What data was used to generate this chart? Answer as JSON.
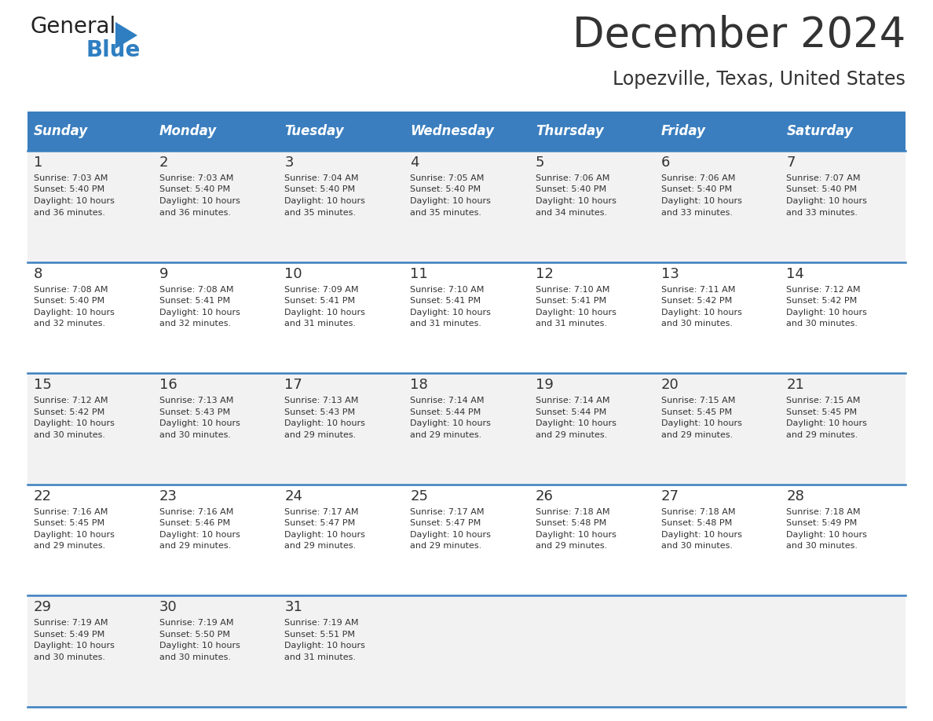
{
  "title": "December 2024",
  "subtitle": "Lopezville, Texas, United States",
  "header_bg": "#3A7EBF",
  "header_text_color": "#FFFFFF",
  "days_of_week": [
    "Sunday",
    "Monday",
    "Tuesday",
    "Wednesday",
    "Thursday",
    "Friday",
    "Saturday"
  ],
  "row_bg_even": "#F2F2F2",
  "row_bg_odd": "#FFFFFF",
  "divider_color": "#3A7EBF",
  "text_color": "#333333",
  "calendar": [
    [
      {
        "day": 1,
        "sunrise": "7:03 AM",
        "sunset": "5:40 PM",
        "daylight": "10 hours and 36 minutes."
      },
      {
        "day": 2,
        "sunrise": "7:03 AM",
        "sunset": "5:40 PM",
        "daylight": "10 hours and 36 minutes."
      },
      {
        "day": 3,
        "sunrise": "7:04 AM",
        "sunset": "5:40 PM",
        "daylight": "10 hours and 35 minutes."
      },
      {
        "day": 4,
        "sunrise": "7:05 AM",
        "sunset": "5:40 PM",
        "daylight": "10 hours and 35 minutes."
      },
      {
        "day": 5,
        "sunrise": "7:06 AM",
        "sunset": "5:40 PM",
        "daylight": "10 hours and 34 minutes."
      },
      {
        "day": 6,
        "sunrise": "7:06 AM",
        "sunset": "5:40 PM",
        "daylight": "10 hours and 33 minutes."
      },
      {
        "day": 7,
        "sunrise": "7:07 AM",
        "sunset": "5:40 PM",
        "daylight": "10 hours and 33 minutes."
      }
    ],
    [
      {
        "day": 8,
        "sunrise": "7:08 AM",
        "sunset": "5:40 PM",
        "daylight": "10 hours and 32 minutes."
      },
      {
        "day": 9,
        "sunrise": "7:08 AM",
        "sunset": "5:41 PM",
        "daylight": "10 hours and 32 minutes."
      },
      {
        "day": 10,
        "sunrise": "7:09 AM",
        "sunset": "5:41 PM",
        "daylight": "10 hours and 31 minutes."
      },
      {
        "day": 11,
        "sunrise": "7:10 AM",
        "sunset": "5:41 PM",
        "daylight": "10 hours and 31 minutes."
      },
      {
        "day": 12,
        "sunrise": "7:10 AM",
        "sunset": "5:41 PM",
        "daylight": "10 hours and 31 minutes."
      },
      {
        "day": 13,
        "sunrise": "7:11 AM",
        "sunset": "5:42 PM",
        "daylight": "10 hours and 30 minutes."
      },
      {
        "day": 14,
        "sunrise": "7:12 AM",
        "sunset": "5:42 PM",
        "daylight": "10 hours and 30 minutes."
      }
    ],
    [
      {
        "day": 15,
        "sunrise": "7:12 AM",
        "sunset": "5:42 PM",
        "daylight": "10 hours and 30 minutes."
      },
      {
        "day": 16,
        "sunrise": "7:13 AM",
        "sunset": "5:43 PM",
        "daylight": "10 hours and 30 minutes."
      },
      {
        "day": 17,
        "sunrise": "7:13 AM",
        "sunset": "5:43 PM",
        "daylight": "10 hours and 29 minutes."
      },
      {
        "day": 18,
        "sunrise": "7:14 AM",
        "sunset": "5:44 PM",
        "daylight": "10 hours and 29 minutes."
      },
      {
        "day": 19,
        "sunrise": "7:14 AM",
        "sunset": "5:44 PM",
        "daylight": "10 hours and 29 minutes."
      },
      {
        "day": 20,
        "sunrise": "7:15 AM",
        "sunset": "5:45 PM",
        "daylight": "10 hours and 29 minutes."
      },
      {
        "day": 21,
        "sunrise": "7:15 AM",
        "sunset": "5:45 PM",
        "daylight": "10 hours and 29 minutes."
      }
    ],
    [
      {
        "day": 22,
        "sunrise": "7:16 AM",
        "sunset": "5:45 PM",
        "daylight": "10 hours and 29 minutes."
      },
      {
        "day": 23,
        "sunrise": "7:16 AM",
        "sunset": "5:46 PM",
        "daylight": "10 hours and 29 minutes."
      },
      {
        "day": 24,
        "sunrise": "7:17 AM",
        "sunset": "5:47 PM",
        "daylight": "10 hours and 29 minutes."
      },
      {
        "day": 25,
        "sunrise": "7:17 AM",
        "sunset": "5:47 PM",
        "daylight": "10 hours and 29 minutes."
      },
      {
        "day": 26,
        "sunrise": "7:18 AM",
        "sunset": "5:48 PM",
        "daylight": "10 hours and 29 minutes."
      },
      {
        "day": 27,
        "sunrise": "7:18 AM",
        "sunset": "5:48 PM",
        "daylight": "10 hours and 30 minutes."
      },
      {
        "day": 28,
        "sunrise": "7:18 AM",
        "sunset": "5:49 PM",
        "daylight": "10 hours and 30 minutes."
      }
    ],
    [
      {
        "day": 29,
        "sunrise": "7:19 AM",
        "sunset": "5:49 PM",
        "daylight": "10 hours and 30 minutes."
      },
      {
        "day": 30,
        "sunrise": "7:19 AM",
        "sunset": "5:50 PM",
        "daylight": "10 hours and 30 minutes."
      },
      {
        "day": 31,
        "sunrise": "7:19 AM",
        "sunset": "5:51 PM",
        "daylight": "10 hours and 31 minutes."
      },
      null,
      null,
      null,
      null
    ]
  ],
  "logo_text1": "General",
  "logo_text2": "Blue",
  "logo_color1": "#222222",
  "logo_color2": "#2E7EC1",
  "title_fontsize": 38,
  "subtitle_fontsize": 17,
  "header_fontsize": 12,
  "day_num_fontsize": 13,
  "cell_text_fontsize": 8
}
